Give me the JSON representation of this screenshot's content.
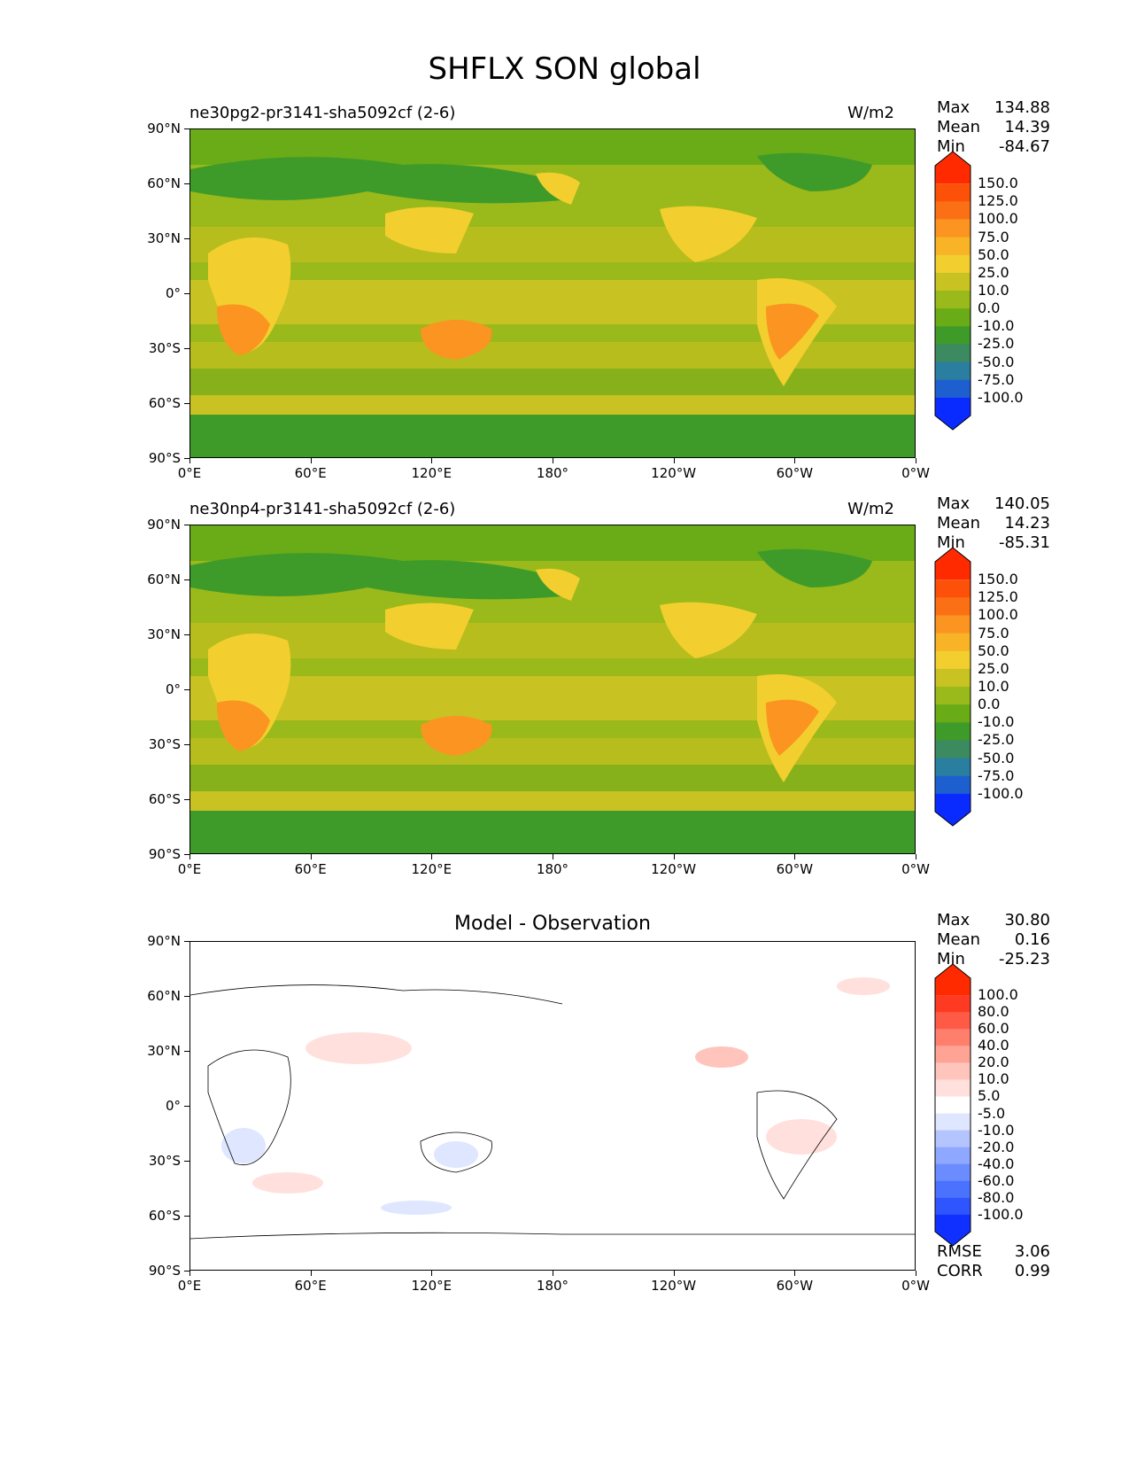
{
  "title": "SHFLX SON global",
  "panels": [
    {
      "name_left": "ne30pg2-pr3141-sha5092cf (2-6)",
      "units": "W/m2",
      "stats": {
        "max_label": "Max",
        "max": "134.88",
        "mean_label": "Mean",
        "mean": "14.39",
        "min_label": "Min",
        "min": "-84.67"
      },
      "colorbar_labels": [
        "150.0",
        "125.0",
        "100.0",
        "75.0",
        "50.0",
        "25.0",
        "10.0",
        "0.0",
        "-10.0",
        "-25.0",
        "-50.0",
        "-75.0",
        "-100.0"
      ]
    },
    {
      "name_left": "ne30np4-pr3141-sha5092cf (2-6)",
      "units": "W/m2",
      "stats": {
        "max_label": "Max",
        "max": "140.05",
        "mean_label": "Mean",
        "mean": "14.23",
        "min_label": "Min",
        "min": "-85.31"
      },
      "colorbar_labels": [
        "150.0",
        "125.0",
        "100.0",
        "75.0",
        "50.0",
        "25.0",
        "10.0",
        "0.0",
        "-10.0",
        "-25.0",
        "-50.0",
        "-75.0",
        "-100.0"
      ]
    },
    {
      "name_center": "Model - Observation",
      "stats": {
        "max_label": "Max",
        "max": "30.80",
        "mean_label": "Mean",
        "mean": "0.16",
        "min_label": "Min",
        "min": "-25.23"
      },
      "colorbar_labels": [
        "100.0",
        "80.0",
        "60.0",
        "40.0",
        "20.0",
        "10.0",
        "5.0",
        "-5.0",
        "-10.0",
        "-20.0",
        "-40.0",
        "-60.0",
        "-80.0",
        "-100.0"
      ],
      "footer": {
        "rmse_label": "RMSE",
        "rmse": "3.06",
        "corr_label": "CORR",
        "corr": "0.99"
      }
    }
  ],
  "axes": {
    "lat_labels": [
      "90°N",
      "60°N",
      "30°N",
      "0°",
      "30°S",
      "60°S",
      "90°S"
    ],
    "lon_labels": [
      "0°E",
      "60°E",
      "120°E",
      "180°",
      "120°W",
      "60°W",
      "0°W"
    ]
  },
  "colors": {
    "model_scale": [
      "#0a2bff",
      "#1e5fd0",
      "#2a7ea0",
      "#3b8a60",
      "#3e9b2a",
      "#6aab18",
      "#9ab91a",
      "#c8c223",
      "#f2cf2e",
      "#f9b326",
      "#fb9420",
      "#fc7015",
      "#fd5008",
      "#ff2a00"
    ],
    "diff_scale": [
      "#1030ff",
      "#2e55ff",
      "#4a72ff",
      "#6b8cff",
      "#8ea8ff",
      "#b3c4ff",
      "#dfe6ff",
      "#ffffff",
      "#ffe0dc",
      "#ffc4bb",
      "#ffa395",
      "#ff7f6c",
      "#ff5a45",
      "#ff3a22",
      "#ff2a00"
    ]
  }
}
